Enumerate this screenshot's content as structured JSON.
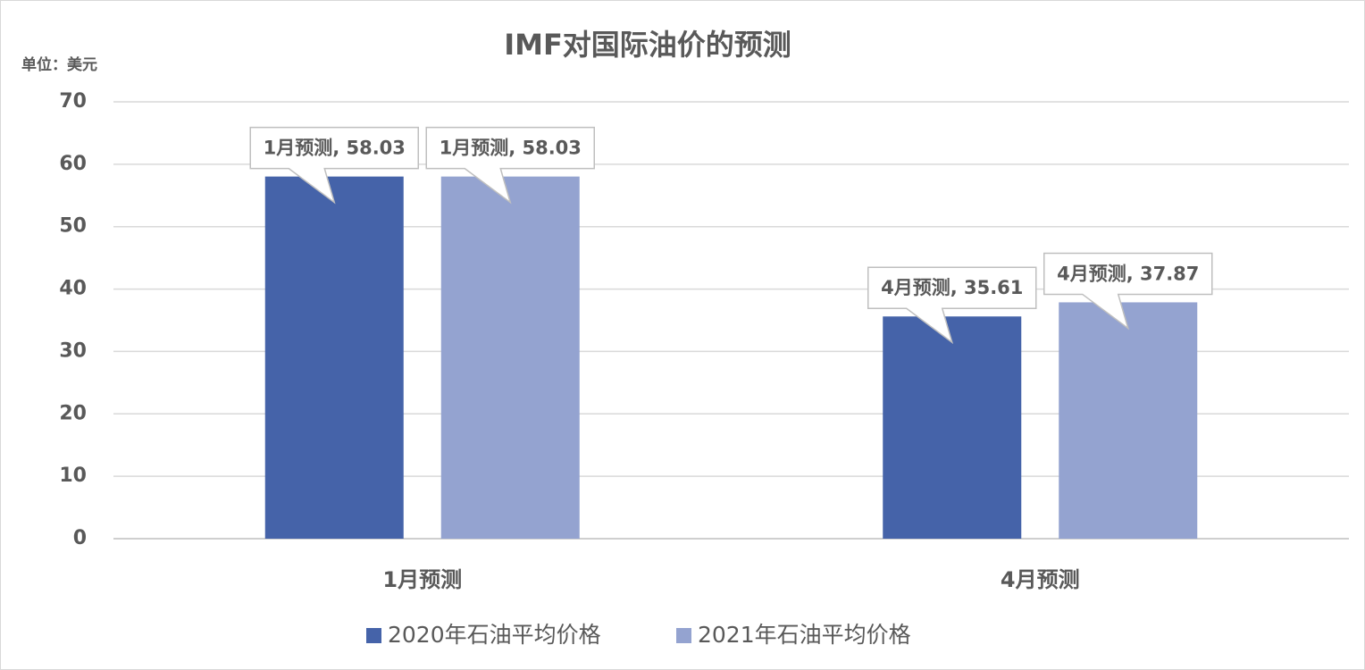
{
  "chart_data": {
    "type": "bar",
    "title": "IMF对国际油价的预测",
    "ylabel": "单位：美元",
    "categories": [
      "1月预测",
      "4月预测"
    ],
    "series": [
      {
        "name": "2020年石油平均价格",
        "color": "#4563a9",
        "values": [
          58.03,
          35.61
        ],
        "value_labels": [
          "1月预测, 58.03",
          "4月预测, 35.61"
        ]
      },
      {
        "name": "2021年石油平均价格",
        "color": "#94a3d0",
        "values": [
          58.03,
          37.87
        ],
        "value_labels": [
          "1月预测, 58.03",
          "4月预测, 37.87"
        ]
      }
    ],
    "ylim": [
      0,
      70
    ],
    "yticks": [
      0,
      10,
      20,
      30,
      40,
      50,
      60,
      70
    ],
    "grid": true,
    "legend": "bottom"
  }
}
